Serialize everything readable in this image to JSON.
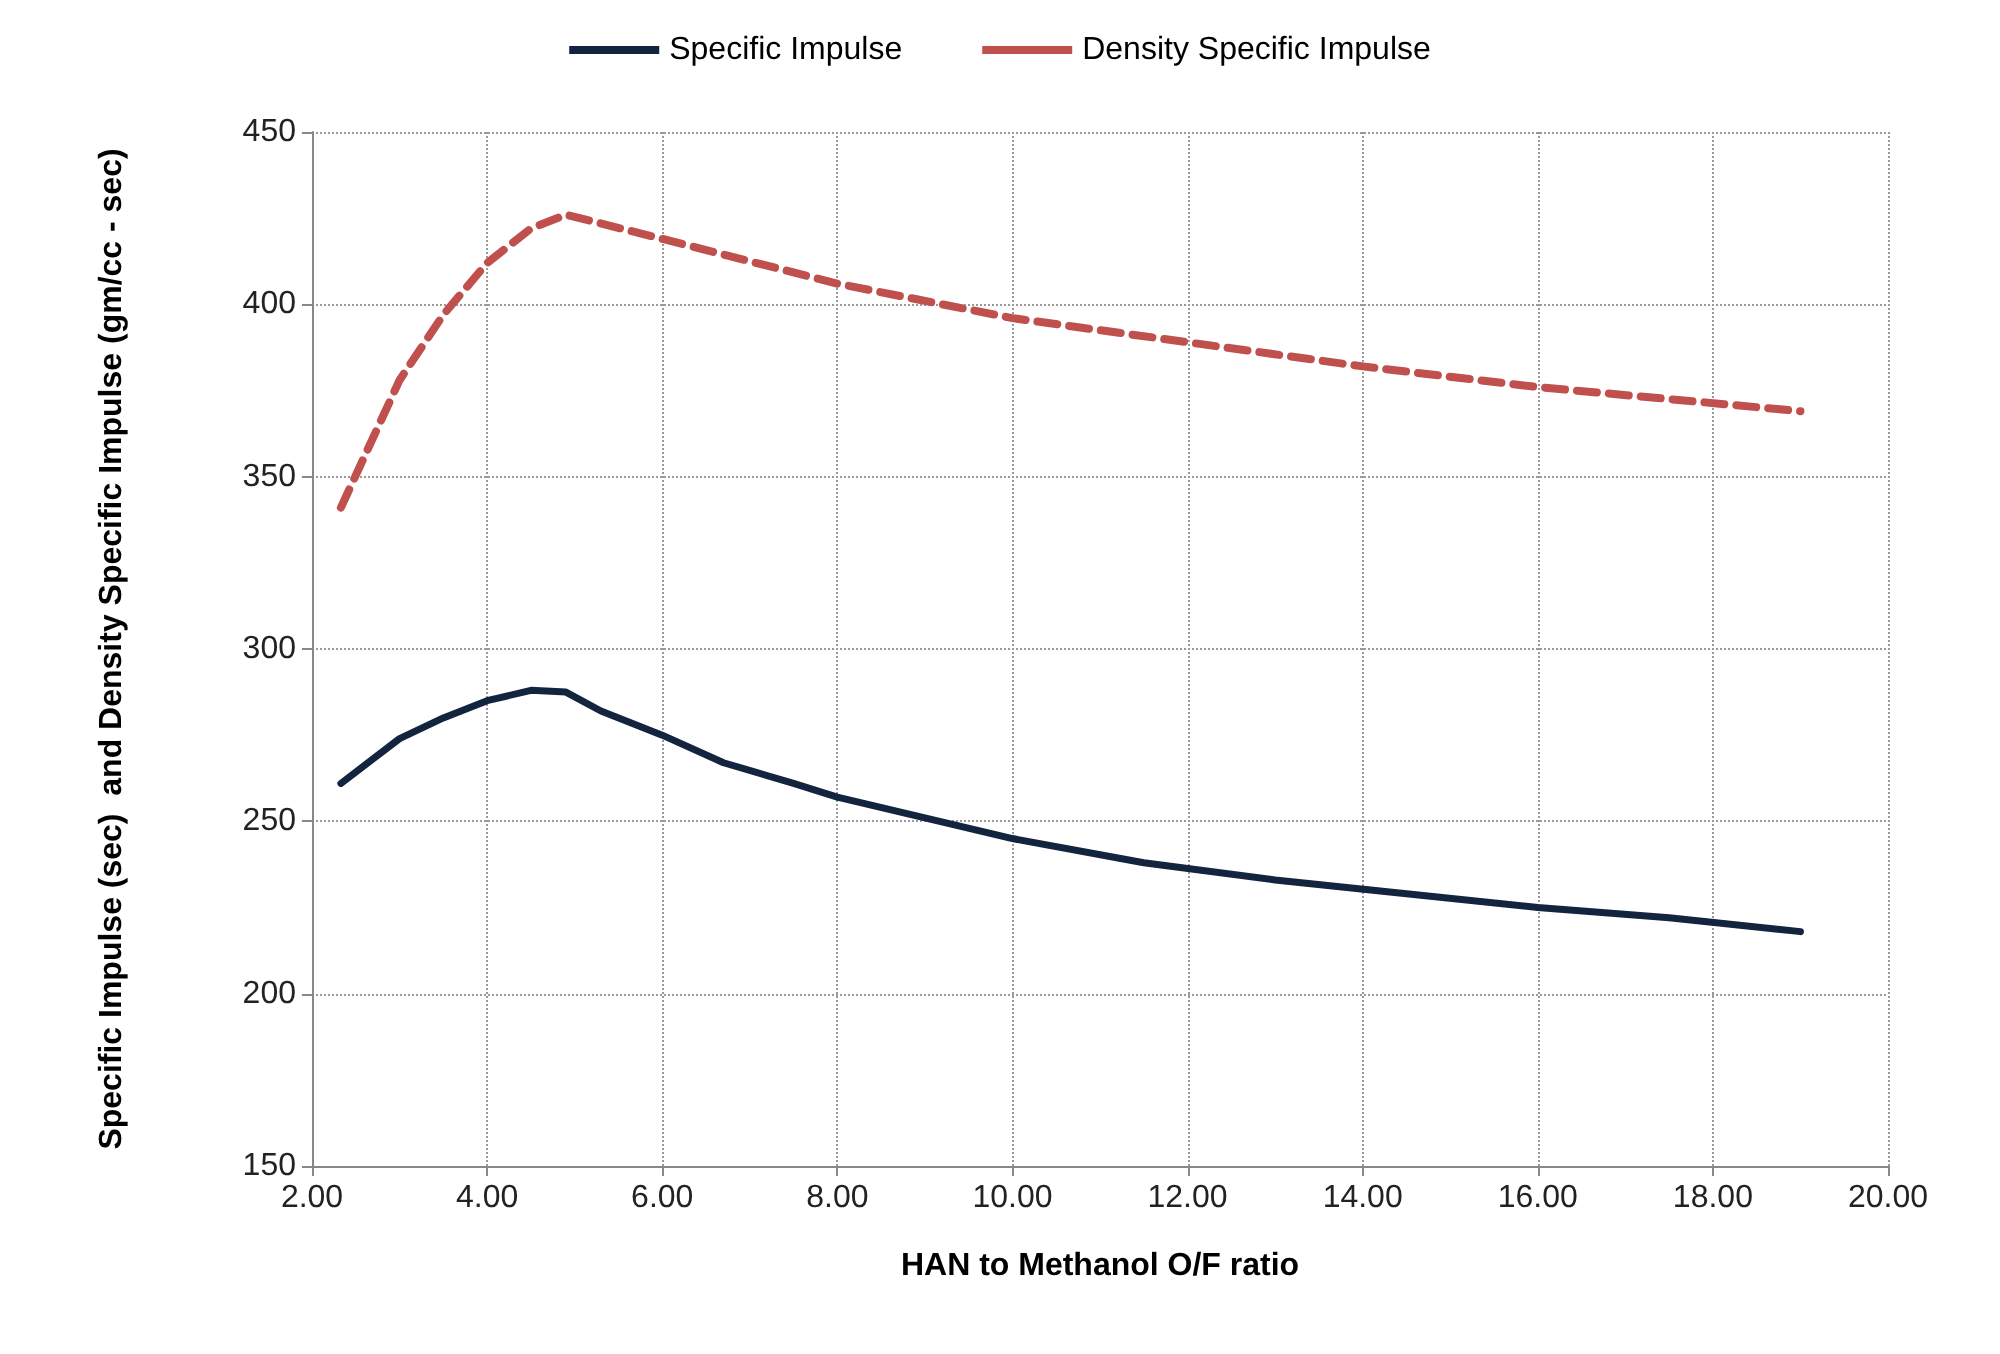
{
  "chart_data": {
    "type": "line",
    "xlabel": "HAN to Methanol O/F ratio",
    "ylabel": "Specific Impulse (sec)  and Density Specific Impulse (gm/cc - sec)",
    "xlim": [
      2,
      20
    ],
    "xticks": [
      {
        "value": 2,
        "label": "2.00"
      },
      {
        "value": 4,
        "label": "4.00"
      },
      {
        "value": 6,
        "label": "6.00"
      },
      {
        "value": 8,
        "label": "8.00"
      },
      {
        "value": 10,
        "label": "10.00"
      },
      {
        "value": 12,
        "label": "12.00"
      },
      {
        "value": 14,
        "label": "14.00"
      },
      {
        "value": 16,
        "label": "16.00"
      },
      {
        "value": 18,
        "label": "18.00"
      },
      {
        "value": 20,
        "label": "20.00"
      }
    ],
    "ylim": [
      150,
      450
    ],
    "yticks": [
      150,
      200,
      250,
      300,
      350,
      400,
      450
    ],
    "grid": true,
    "legend": "top",
    "series": [
      {
        "name": "Specific Impulse",
        "color": "#13243f",
        "line_style": "solid",
        "x": [
          2.33,
          3,
          3.5,
          4,
          4.5,
          4.9,
          5.3,
          6,
          6.7,
          7.5,
          8,
          9,
          10,
          11.5,
          13,
          14.5,
          16,
          17.5,
          19
        ],
        "values": [
          261,
          274,
          280,
          285,
          288,
          287.5,
          282,
          275,
          267,
          261,
          257,
          251,
          245,
          238,
          233,
          229,
          225,
          222,
          218
        ]
      },
      {
        "name": "Density Specific Impulse",
        "color": "#c0504d",
        "line_style": "dashed",
        "x": [
          2.33,
          3,
          3.5,
          4,
          4.5,
          4.9,
          6,
          8,
          10,
          12,
          14,
          16,
          19
        ],
        "values": [
          341,
          378,
          397,
          412,
          422,
          426,
          419,
          406,
          396,
          389,
          382,
          376,
          369
        ]
      }
    ]
  }
}
